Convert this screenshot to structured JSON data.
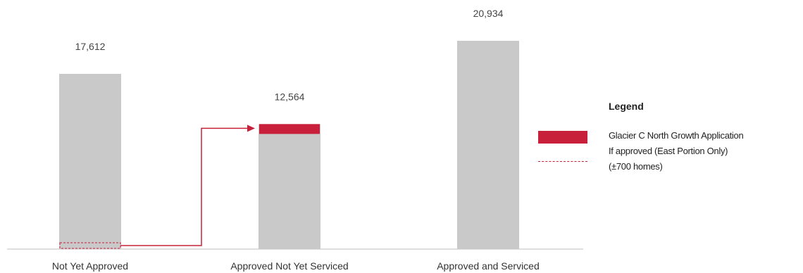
{
  "chart_data": {
    "type": "bar",
    "categories": [
      "Not Yet Approved",
      "Approved Not Yet Serviced",
      "Approved and Serviced"
    ],
    "values": [
      17612,
      12564,
      20934
    ],
    "value_labels": [
      "17,612",
      "12,564",
      "20,934"
    ],
    "highlight": {
      "category_index": 1,
      "value": 700,
      "source_category_index": 0
    },
    "grid": false,
    "legend_position": "right",
    "legend": {
      "title": "Legend",
      "entries": [
        {
          "label": "Glacier C North Growth Application"
        },
        {
          "label": "If approved (East Portion Only)"
        },
        {
          "label": "(±700 homes)"
        }
      ]
    },
    "colors": {
      "bar": "#c9c9c9",
      "highlight": "#c8203a",
      "axis": "#bfbfbf"
    }
  }
}
